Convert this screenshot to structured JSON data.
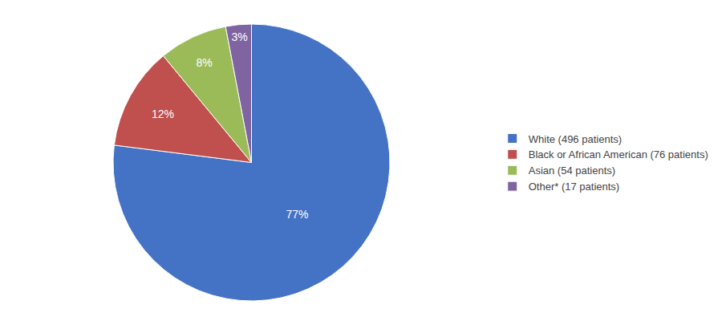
{
  "chart_data": {
    "type": "pie",
    "categories": [
      "White (496 patients)",
      "Black or African American (76 patients)",
      "Asian (54 patients)",
      "Other* (17 patients)"
    ],
    "values": [
      77,
      12,
      8,
      3
    ],
    "value_labels": [
      "77%",
      "12%",
      "8%",
      "3%"
    ],
    "colors": [
      "#4472C4",
      "#C0504D",
      "#9BBB59",
      "#8064A2"
    ],
    "data_labels": true,
    "legend": "right"
  }
}
